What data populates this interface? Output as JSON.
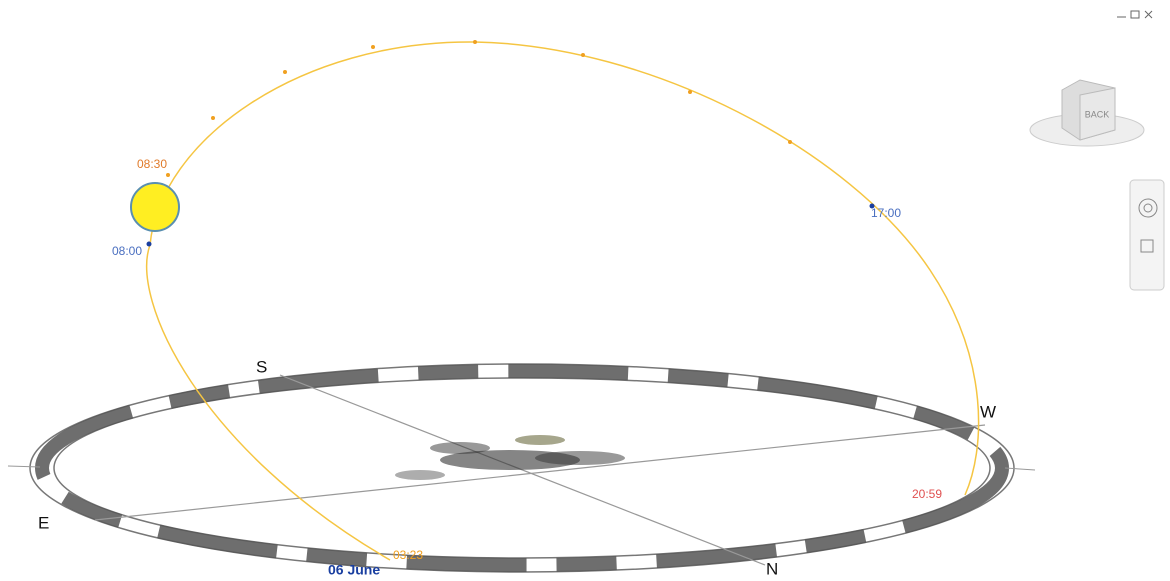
{
  "compass": {
    "south": "S",
    "west": "W",
    "east": "E",
    "north": "N"
  },
  "sun_path": {
    "times": [
      "08:30",
      "08:00",
      "17:00",
      "20:59",
      "03:23"
    ],
    "date": "06 June"
  },
  "view_cube": {
    "face": "BACK"
  }
}
